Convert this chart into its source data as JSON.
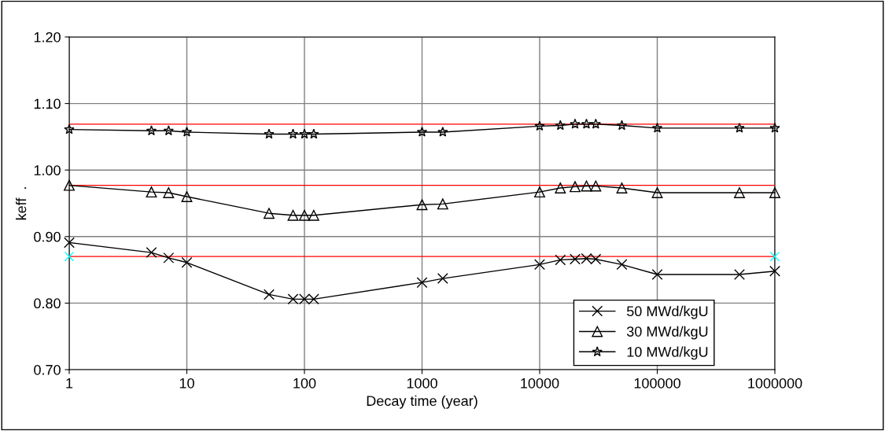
{
  "chart_data": {
    "type": "line",
    "xlabel": "Decay time (year)",
    "ylabel": "keff  .",
    "log": "x",
    "xlim": [
      1,
      1000000
    ],
    "xticks": [
      1,
      10,
      100,
      1000,
      10000,
      100000,
      1000000
    ],
    "ylim": [
      0.7,
      1.2
    ],
    "yticks": [
      {
        "value": 0.7,
        "label": "0.70"
      },
      {
        "value": 0.8,
        "label": "0.80"
      },
      {
        "value": 0.9,
        "label": "0.90"
      },
      {
        "value": 1.0,
        "label": "1.00"
      },
      {
        "value": 1.1,
        "label": "1.10"
      },
      {
        "value": 1.2,
        "label": "1.20"
      }
    ],
    "x": [
      1,
      5,
      7,
      10,
      50,
      80,
      100,
      120,
      1000,
      1500,
      10000,
      15000,
      20000,
      25000,
      30000,
      50000,
      100000,
      500000,
      1000000
    ],
    "series": [
      {
        "name": "50 MWd/kgU",
        "color": "#000000",
        "marker": "cross",
        "values": [
          0.891,
          0.876,
          0.868,
          0.861,
          0.813,
          0.806,
          0.806,
          0.806,
          0.831,
          0.837,
          0.858,
          0.865,
          0.866,
          0.867,
          0.866,
          0.858,
          0.843,
          0.843,
          0.848
        ]
      },
      {
        "name": "30 MWd/kgU",
        "color": "#000000",
        "marker": "triangle",
        "values": [
          0.977,
          0.967,
          0.966,
          0.96,
          0.935,
          0.932,
          0.932,
          0.932,
          0.948,
          0.949,
          0.967,
          0.973,
          0.975,
          0.976,
          0.976,
          0.973,
          0.966,
          0.966,
          0.966
        ]
      },
      {
        "name": "10 MWd/kgU",
        "color": "#000000",
        "marker": "star",
        "values": [
          1.061,
          1.059,
          1.059,
          1.057,
          1.054,
          1.054,
          1.054,
          1.054,
          1.057,
          1.057,
          1.066,
          1.067,
          1.069,
          1.069,
          1.069,
          1.067,
          1.063,
          1.063,
          1.063
        ]
      },
      {
        "type": "scatter",
        "color": "#00ffff",
        "marker": "cross",
        "x": [
          1,
          1000000
        ],
        "values": [
          0.87,
          0.87
        ]
      }
    ],
    "ref_lines": [
      {
        "axis": "y",
        "value": 1.069,
        "color": "#ff0000"
      },
      {
        "axis": "y",
        "value": 0.977,
        "color": "#ff0000"
      },
      {
        "axis": "y",
        "value": 0.87,
        "color": "#ff0000"
      }
    ],
    "grid": true,
    "legend": "bottom right"
  }
}
